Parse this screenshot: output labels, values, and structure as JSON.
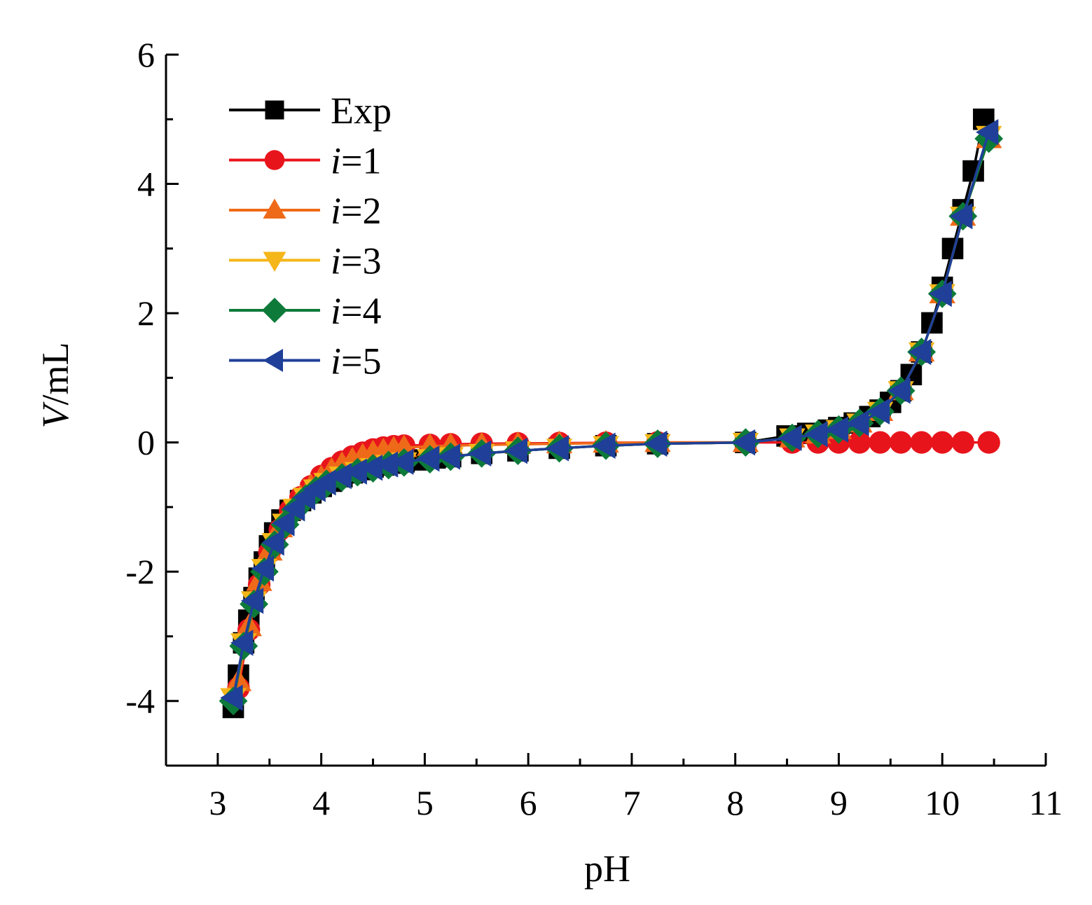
{
  "chart_data": {
    "type": "line",
    "xlabel": "pH",
    "ylabel_italic": "V",
    "ylabel_rest": "/mL",
    "xlim": [
      2.5,
      11
    ],
    "ylim": [
      -5,
      6
    ],
    "xticks": [
      "3",
      "4",
      "5",
      "6",
      "7",
      "8",
      "9",
      "10",
      "11"
    ],
    "yticks": [
      "-4",
      "-2",
      "0",
      "2",
      "4",
      "6"
    ],
    "grid": false,
    "legend": {
      "placement": "top-left"
    },
    "series": [
      {
        "name": "Exp",
        "label_italic": "",
        "label_rest": "Exp",
        "marker": "square",
        "color": "#000000",
        "points": [
          [
            3.15,
            -4.1
          ],
          [
            3.2,
            -3.6
          ],
          [
            3.25,
            -3.1
          ],
          [
            3.3,
            -2.75
          ],
          [
            3.35,
            -2.4
          ],
          [
            3.4,
            -2.1
          ],
          [
            3.45,
            -1.85
          ],
          [
            3.5,
            -1.6
          ],
          [
            3.55,
            -1.4
          ],
          [
            3.62,
            -1.2
          ],
          [
            3.7,
            -1.05
          ],
          [
            3.8,
            -0.9
          ],
          [
            3.9,
            -0.78
          ],
          [
            4.0,
            -0.68
          ],
          [
            4.1,
            -0.6
          ],
          [
            4.2,
            -0.53
          ],
          [
            4.3,
            -0.47
          ],
          [
            4.4,
            -0.42
          ],
          [
            4.5,
            -0.38
          ],
          [
            4.6,
            -0.35
          ],
          [
            4.7,
            -0.32
          ],
          [
            4.8,
            -0.3
          ],
          [
            4.95,
            -0.27
          ],
          [
            5.1,
            -0.24
          ],
          [
            5.25,
            -0.22
          ],
          [
            5.55,
            -0.17
          ],
          [
            5.9,
            -0.13
          ],
          [
            6.3,
            -0.09
          ],
          [
            6.75,
            -0.05
          ],
          [
            7.25,
            -0.02
          ],
          [
            8.1,
            0.0
          ],
          [
            8.5,
            0.1
          ],
          [
            8.7,
            0.14
          ],
          [
            8.9,
            0.19
          ],
          [
            9.0,
            0.23
          ],
          [
            9.15,
            0.3
          ],
          [
            9.3,
            0.4
          ],
          [
            9.4,
            0.5
          ],
          [
            9.5,
            0.62
          ],
          [
            9.6,
            0.8
          ],
          [
            9.7,
            1.05
          ],
          [
            9.8,
            1.4
          ],
          [
            9.9,
            1.85
          ],
          [
            10.0,
            2.4
          ],
          [
            10.1,
            3.0
          ],
          [
            10.2,
            3.6
          ],
          [
            10.3,
            4.2
          ],
          [
            10.4,
            5.0
          ]
        ]
      },
      {
        "name": "i=1",
        "label_italic": "i",
        "label_rest": "=1",
        "marker": "circle",
        "color": "#e8141c",
        "points": [
          [
            3.2,
            -3.8
          ],
          [
            3.3,
            -2.9
          ],
          [
            3.4,
            -2.2
          ],
          [
            3.5,
            -1.7
          ],
          [
            3.6,
            -1.35
          ],
          [
            3.7,
            -1.05
          ],
          [
            3.8,
            -0.85
          ],
          [
            3.9,
            -0.68
          ],
          [
            4.0,
            -0.52
          ],
          [
            4.1,
            -0.4
          ],
          [
            4.2,
            -0.3
          ],
          [
            4.3,
            -0.22
          ],
          [
            4.4,
            -0.16
          ],
          [
            4.5,
            -0.11
          ],
          [
            4.6,
            -0.08
          ],
          [
            4.7,
            -0.06
          ],
          [
            4.8,
            -0.05
          ],
          [
            5.05,
            -0.04
          ],
          [
            5.25,
            -0.03
          ],
          [
            5.55,
            -0.02
          ],
          [
            5.9,
            -0.015
          ],
          [
            6.3,
            -0.01
          ],
          [
            6.75,
            -0.005
          ],
          [
            7.25,
            0.0
          ],
          [
            8.1,
            0.0
          ],
          [
            8.55,
            0.0
          ],
          [
            8.8,
            0.0
          ],
          [
            9.0,
            0.0
          ],
          [
            9.2,
            0.0
          ],
          [
            9.4,
            0.0
          ],
          [
            9.6,
            0.0
          ],
          [
            9.8,
            0.0
          ],
          [
            10.0,
            0.0
          ],
          [
            10.2,
            0.0
          ],
          [
            10.45,
            0.0
          ]
        ]
      },
      {
        "name": "i=2",
        "label_italic": "i",
        "label_rest": "=2",
        "marker": "triangle-up",
        "color": "#ef6a18",
        "points": [
          [
            3.2,
            -3.7
          ],
          [
            3.3,
            -2.85
          ],
          [
            3.4,
            -2.15
          ],
          [
            3.5,
            -1.68
          ],
          [
            3.6,
            -1.32
          ],
          [
            3.7,
            -1.05
          ],
          [
            3.8,
            -0.85
          ],
          [
            3.9,
            -0.68
          ],
          [
            4.0,
            -0.55
          ],
          [
            4.1,
            -0.43
          ],
          [
            4.2,
            -0.34
          ],
          [
            4.3,
            -0.27
          ],
          [
            4.4,
            -0.21
          ],
          [
            4.5,
            -0.16
          ],
          [
            4.6,
            -0.13
          ],
          [
            4.7,
            -0.1
          ],
          [
            4.8,
            -0.08
          ],
          [
            5.05,
            -0.06
          ],
          [
            5.25,
            -0.05
          ],
          [
            5.55,
            -0.04
          ],
          [
            5.9,
            -0.03
          ],
          [
            6.3,
            -0.02
          ],
          [
            6.75,
            -0.01
          ],
          [
            7.25,
            0.0
          ],
          [
            8.1,
            0.0
          ],
          [
            8.55,
            0.07
          ],
          [
            8.8,
            0.13
          ],
          [
            9.0,
            0.2
          ],
          [
            9.2,
            0.3
          ],
          [
            9.4,
            0.48
          ],
          [
            9.6,
            0.8
          ],
          [
            9.8,
            1.4
          ],
          [
            10.0,
            2.3
          ],
          [
            10.2,
            3.5
          ],
          [
            10.45,
            4.7
          ]
        ]
      },
      {
        "name": "i=3",
        "label_italic": "i",
        "label_rest": "=3",
        "marker": "triangle-down",
        "color": "#f5b619",
        "points": [
          [
            3.15,
            -3.95
          ],
          [
            3.25,
            -3.1
          ],
          [
            3.35,
            -2.45
          ],
          [
            3.45,
            -1.95
          ],
          [
            3.55,
            -1.55
          ],
          [
            3.65,
            -1.25
          ],
          [
            3.75,
            -1.02
          ],
          [
            3.85,
            -0.85
          ],
          [
            3.95,
            -0.72
          ],
          [
            4.05,
            -0.62
          ],
          [
            4.2,
            -0.52
          ],
          [
            4.35,
            -0.45
          ],
          [
            4.5,
            -0.39
          ],
          [
            4.65,
            -0.34
          ],
          [
            4.8,
            -0.3
          ],
          [
            5.05,
            -0.25
          ],
          [
            5.25,
            -0.22
          ],
          [
            5.55,
            -0.17
          ],
          [
            5.9,
            -0.13
          ],
          [
            6.3,
            -0.09
          ],
          [
            6.75,
            -0.05
          ],
          [
            7.25,
            -0.02
          ],
          [
            8.1,
            0.0
          ],
          [
            8.55,
            0.07
          ],
          [
            8.8,
            0.13
          ],
          [
            9.0,
            0.2
          ],
          [
            9.2,
            0.3
          ],
          [
            9.4,
            0.48
          ],
          [
            9.6,
            0.8
          ],
          [
            9.8,
            1.4
          ],
          [
            10.0,
            2.3
          ],
          [
            10.2,
            3.5
          ],
          [
            10.45,
            4.75
          ]
        ]
      },
      {
        "name": "i=4",
        "label_italic": "i",
        "label_rest": "=4",
        "marker": "diamond",
        "color": "#0d7a3a",
        "points": [
          [
            3.15,
            -4.0
          ],
          [
            3.25,
            -3.15
          ],
          [
            3.35,
            -2.5
          ],
          [
            3.45,
            -2.0
          ],
          [
            3.55,
            -1.58
          ],
          [
            3.65,
            -1.27
          ],
          [
            3.75,
            -1.04
          ],
          [
            3.85,
            -0.87
          ],
          [
            3.95,
            -0.74
          ],
          [
            4.05,
            -0.64
          ],
          [
            4.2,
            -0.54
          ],
          [
            4.35,
            -0.46
          ],
          [
            4.5,
            -0.4
          ],
          [
            4.65,
            -0.35
          ],
          [
            4.8,
            -0.31
          ],
          [
            5.05,
            -0.26
          ],
          [
            5.25,
            -0.22
          ],
          [
            5.55,
            -0.17
          ],
          [
            5.9,
            -0.13
          ],
          [
            6.3,
            -0.09
          ],
          [
            6.75,
            -0.05
          ],
          [
            7.25,
            -0.02
          ],
          [
            8.1,
            0.0
          ],
          [
            8.55,
            0.07
          ],
          [
            8.8,
            0.13
          ],
          [
            9.0,
            0.2
          ],
          [
            9.2,
            0.3
          ],
          [
            9.4,
            0.48
          ],
          [
            9.6,
            0.8
          ],
          [
            9.8,
            1.4
          ],
          [
            10.0,
            2.3
          ],
          [
            10.2,
            3.5
          ],
          [
            10.45,
            4.7
          ]
        ]
      },
      {
        "name": "i=5",
        "label_italic": "i",
        "label_rest": "=5",
        "marker": "triangle-left",
        "color": "#1f3f98",
        "points": [
          [
            3.15,
            -3.95
          ],
          [
            3.25,
            -3.1
          ],
          [
            3.35,
            -2.45
          ],
          [
            3.45,
            -1.95
          ],
          [
            3.55,
            -1.55
          ],
          [
            3.65,
            -1.25
          ],
          [
            3.75,
            -1.02
          ],
          [
            3.85,
            -0.85
          ],
          [
            3.95,
            -0.72
          ],
          [
            4.05,
            -0.62
          ],
          [
            4.2,
            -0.52
          ],
          [
            4.35,
            -0.45
          ],
          [
            4.5,
            -0.39
          ],
          [
            4.65,
            -0.34
          ],
          [
            4.8,
            -0.3
          ],
          [
            5.05,
            -0.25
          ],
          [
            5.25,
            -0.22
          ],
          [
            5.55,
            -0.17
          ],
          [
            5.9,
            -0.13
          ],
          [
            6.3,
            -0.09
          ],
          [
            6.75,
            -0.05
          ],
          [
            7.25,
            -0.02
          ],
          [
            8.1,
            0.0
          ],
          [
            8.55,
            0.07
          ],
          [
            8.8,
            0.13
          ],
          [
            9.0,
            0.2
          ],
          [
            9.2,
            0.3
          ],
          [
            9.4,
            0.48
          ],
          [
            9.6,
            0.8
          ],
          [
            9.8,
            1.4
          ],
          [
            10.0,
            2.3
          ],
          [
            10.2,
            3.5
          ],
          [
            10.45,
            4.8
          ]
        ]
      }
    ]
  }
}
